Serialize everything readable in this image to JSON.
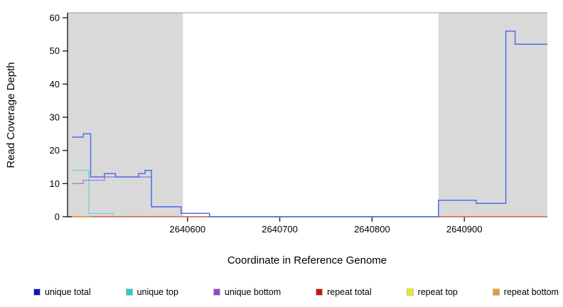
{
  "chart_data": {
    "type": "line",
    "title": "",
    "xlabel": "Coordinate in Reference Genome",
    "ylabel": "Read Coverage Depth",
    "xlim": [
      2640470,
      2640990
    ],
    "ylim": [
      0,
      60
    ],
    "x_ticks": [
      2640600,
      2640700,
      2640800,
      2640900
    ],
    "y_ticks": [
      0,
      10,
      20,
      30,
      40,
      50,
      60
    ],
    "grid": false,
    "legend_position": "bottom",
    "shade_color": "#d9d9d9",
    "axis_color": "#000000",
    "shaded_regions": [
      {
        "x0": 2640470,
        "x1": 2640595
      },
      {
        "x0": 2640872,
        "x1": 2640990
      }
    ],
    "series": [
      {
        "name": "unique top",
        "color": "#55d8d8",
        "width": 1.2,
        "points": [
          [
            2640475,
            14
          ],
          [
            2640493,
            1
          ],
          [
            2640520,
            0
          ],
          [
            2640860,
            0
          ]
        ]
      },
      {
        "name": "unique bottom",
        "color": "#9b6fd6",
        "width": 1.2,
        "points": [
          [
            2640475,
            10
          ],
          [
            2640487,
            11
          ],
          [
            2640510,
            12
          ],
          [
            2640555,
            12
          ],
          [
            2640561,
            3
          ],
          [
            2640593,
            1
          ],
          [
            2640624,
            0
          ],
          [
            2640860,
            0
          ]
        ]
      },
      {
        "name": "repeat top",
        "color": "#eded22",
        "width": 1.2,
        "points": [
          [
            2640475,
            0
          ],
          [
            2640990,
            0
          ]
        ]
      },
      {
        "name": "repeat total",
        "color": "#ee5566",
        "width": 1.2,
        "points": [
          [
            2640475,
            0
          ],
          [
            2640990,
            0
          ]
        ]
      },
      {
        "name": "repeat bottom",
        "color": "#f0a030",
        "width": 1.2,
        "points": [
          [
            2640475,
            0
          ],
          [
            2640497,
            0
          ]
        ]
      },
      {
        "name": "unique total",
        "color": "#4d6fe8",
        "width": 1.5,
        "points": [
          [
            2640475,
            24
          ],
          [
            2640487,
            25
          ],
          [
            2640495,
            12
          ],
          [
            2640510,
            13
          ],
          [
            2640522,
            12
          ],
          [
            2640547,
            13
          ],
          [
            2640554,
            14
          ],
          [
            2640561,
            3
          ],
          [
            2640593,
            1
          ],
          [
            2640624,
            0
          ],
          [
            2640872,
            5
          ],
          [
            2640913,
            4
          ],
          [
            2640945,
            56
          ],
          [
            2640955,
            52
          ],
          [
            2640990,
            52
          ]
        ]
      }
    ],
    "legend": [
      {
        "label": "unique total",
        "color": "#1111cc"
      },
      {
        "label": "unique top",
        "color": "#22cccc"
      },
      {
        "label": "unique bottom",
        "color": "#9944cc"
      },
      {
        "label": "repeat total",
        "color": "#cc1111"
      },
      {
        "label": "repeat top",
        "color": "#eded00"
      },
      {
        "label": "repeat bottom",
        "color": "#ee9922"
      }
    ]
  }
}
